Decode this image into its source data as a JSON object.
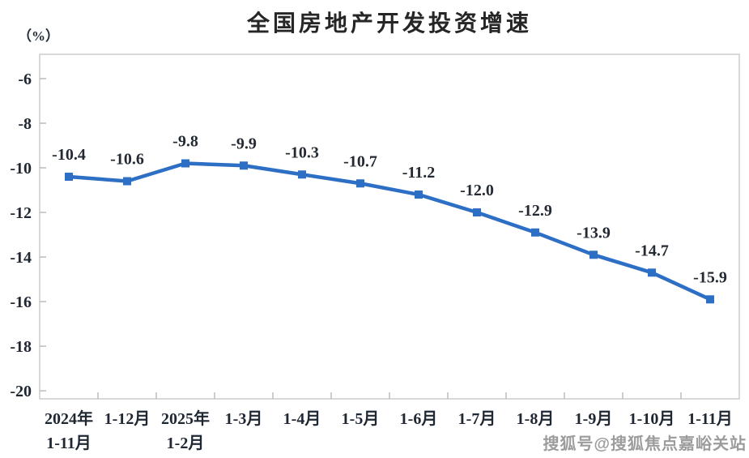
{
  "header": {
    "title": "全国房地产开发投资增速",
    "unit": "（%）"
  },
  "watermark": {
    "text": "搜狐号@搜狐焦点嘉峪关站"
  },
  "colors": {
    "line": "#2c6fc5",
    "marker": "#2c6fc5",
    "plot_border": "#cccccc",
    "tick": "#bbbbbb",
    "text": "#1f2733",
    "watermark": "#9c9c9c"
  },
  "chart_data": {
    "type": "line",
    "title": "全国房地产开发投资增速",
    "ylabel": "（%）",
    "xlabel": "",
    "categories": [
      "2024年\n1-11月",
      "1-12月",
      "2025年\n1-2月",
      "1-3月",
      "1-4月",
      "1-5月",
      "1-6月",
      "1-7月",
      "1-8月",
      "1-9月",
      "1-10月",
      "1-11月"
    ],
    "values": [
      -10.4,
      -10.6,
      -9.8,
      -9.9,
      -10.3,
      -10.7,
      -11.2,
      -12.0,
      -12.9,
      -13.9,
      -14.7,
      -15.9
    ],
    "data_labels": [
      "-10.4",
      "-10.6",
      "-9.8",
      "-9.9",
      "-10.3",
      "-10.7",
      "-11.2",
      "-12.0",
      "-12.9",
      "-13.9",
      "-14.7",
      "-15.9"
    ],
    "yticks": [
      -6,
      -8,
      -10,
      -12,
      -14,
      -16,
      -18,
      -20
    ],
    "ylim": [
      -20.36,
      -4.91
    ],
    "grid": false,
    "legend": false,
    "marker": "square",
    "line_color": "#2c6fc5"
  }
}
